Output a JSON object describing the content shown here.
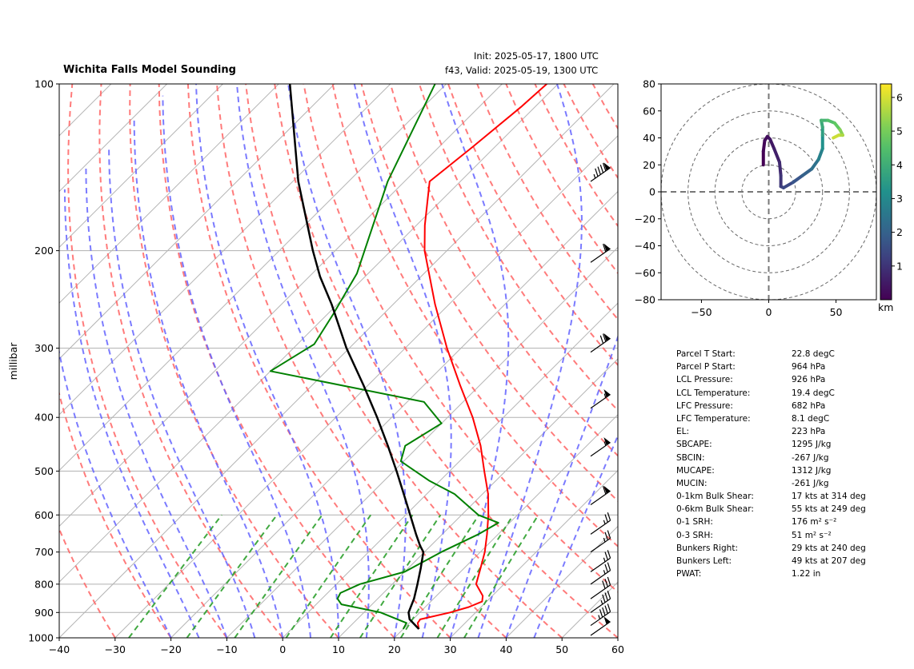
{
  "header": {
    "title": "Wichita Falls Model Sounding",
    "init": "Init: 2025-05-17, 1800 UTC",
    "valid": "f43, Valid: 2025-05-19, 1300 UTC"
  },
  "chart_data": [
    {
      "type": "line",
      "subtype": "skew-t log-p",
      "ylabel": "millibar",
      "xlim": [
        -40,
        60
      ],
      "ylim": [
        1000,
        100
      ],
      "y_scale": "log",
      "x_ticks": [
        -40,
        -30,
        -20,
        -10,
        0,
        10,
        20,
        30,
        40,
        50,
        60
      ],
      "y_ticks": [
        100,
        200,
        300,
        400,
        500,
        600,
        700,
        800,
        900,
        1000
      ],
      "grid": true,
      "colors": {
        "temperature": "#ff0000",
        "dewpoint": "#008000",
        "parcel": "#000000",
        "dry_adiabat": "#ff6464",
        "moist_adiabat": "#6464ff",
        "mixing_ratio": "#2ca02c",
        "isotherm": "#b4b4b4"
      },
      "series": [
        {
          "values": [
            [
              964,
              22.8
            ],
            [
              940,
              21.5
            ],
            [
              926,
              21.3
            ],
            [
              900,
              25.4
            ],
            [
              880,
              27.8
            ],
            [
              860,
              29.2
            ],
            [
              840,
              28.3
            ],
            [
              800,
              25.0
            ],
            [
              750,
              23.0
            ],
            [
              700,
              20.8
            ],
            [
              650,
              18.0
            ],
            [
              600,
              14.8
            ],
            [
              550,
              11.0
            ],
            [
              500,
              6.2
            ],
            [
              450,
              1.0
            ],
            [
              400,
              -5.5
            ],
            [
              350,
              -13.5
            ],
            [
              300,
              -22.5
            ],
            [
              250,
              -32.5
            ],
            [
              200,
              -44.0
            ],
            [
              180,
              -48.5
            ],
            [
              150,
              -55.5
            ],
            [
              130,
              -54.0
            ],
            [
              110,
              -52.5
            ],
            [
              100,
              -52.0
            ]
          ]
        },
        {
          "values": [
            [
              964,
              20.0
            ],
            [
              940,
              19.5
            ],
            [
              900,
              13.0
            ],
            [
              870,
              4.5
            ],
            [
              850,
              2.8
            ],
            [
              830,
              2.3
            ],
            [
              800,
              4.2
            ],
            [
              760,
              10.0
            ],
            [
              700,
              13.0
            ],
            [
              650,
              16.5
            ],
            [
              620,
              18.0
            ],
            [
              600,
              13.0
            ],
            [
              550,
              5.0
            ],
            [
              520,
              -2.0
            ],
            [
              480,
              -10.5
            ],
            [
              450,
              -12.5
            ],
            [
              410,
              -10.0
            ],
            [
              375,
              -17.0
            ],
            [
              330,
              -50.0
            ],
            [
              295,
              -47.0
            ],
            [
              260,
              -49.0
            ],
            [
              220,
              -52.0
            ],
            [
              150,
              -63.0
            ],
            [
              100,
              -72.0
            ]
          ]
        },
        {
          "values": [
            [
              964,
              22.8
            ],
            [
              926,
              19.4
            ],
            [
              900,
              18.0
            ],
            [
              850,
              16.5
            ],
            [
              800,
              14.5
            ],
            [
              750,
              12.3
            ],
            [
              700,
              9.8
            ],
            [
              682,
              8.1
            ],
            [
              650,
              5.3
            ],
            [
              600,
              0.8
            ],
            [
              550,
              -4.1
            ],
            [
              500,
              -9.5
            ],
            [
              450,
              -15.6
            ],
            [
              400,
              -22.6
            ],
            [
              350,
              -30.8
            ],
            [
              300,
              -40.5
            ],
            [
              250,
              -51.0
            ],
            [
              223,
              -58.0
            ],
            [
              200,
              -64.0
            ],
            [
              150,
              -79.0
            ],
            [
              100,
              -98.0
            ]
          ]
        }
      ],
      "wind_barbs": [
        {
          "p": 990,
          "kts": 50
        },
        {
          "p": 950,
          "kts": 45
        },
        {
          "p": 900,
          "kts": 35
        },
        {
          "p": 850,
          "kts": 30
        },
        {
          "p": 800,
          "kts": 25
        },
        {
          "p": 760,
          "kts": 25
        },
        {
          "p": 700,
          "kts": 25
        },
        {
          "p": 650,
          "kts": 25
        },
        {
          "p": 575,
          "kts": 60
        },
        {
          "p": 470,
          "kts": 55
        },
        {
          "p": 385,
          "kts": 55
        },
        {
          "p": 305,
          "kts": 70
        },
        {
          "p": 210,
          "kts": 60
        },
        {
          "p": 150,
          "kts": 95
        }
      ]
    },
    {
      "type": "line",
      "subtype": "hodograph",
      "xlim": [
        -80,
        80
      ],
      "ylim": [
        -80,
        80
      ],
      "x_ticks": [
        -50,
        0,
        50
      ],
      "y_ticks": [
        -80,
        -60,
        -40,
        -20,
        0,
        20,
        40,
        60,
        80
      ],
      "colorbar_label": "km",
      "colorbar_ticks": [
        1,
        2,
        3,
        4,
        5,
        6
      ],
      "colorbar_range": [
        0,
        6.4
      ],
      "values": [
        [
          -4,
          20
        ],
        [
          -4,
          30
        ],
        [
          -3,
          38
        ],
        [
          -1,
          41
        ],
        [
          1,
          39
        ],
        [
          4,
          32
        ],
        [
          8,
          22
        ],
        [
          9,
          12
        ],
        [
          9,
          4
        ],
        [
          11,
          3
        ],
        [
          18,
          7
        ],
        [
          25,
          12
        ],
        [
          32,
          17
        ],
        [
          37,
          24
        ],
        [
          40,
          32
        ],
        [
          40,
          42
        ],
        [
          40,
          48
        ],
        [
          39,
          53
        ],
        [
          44,
          53
        ],
        [
          49,
          51
        ],
        [
          53,
          46
        ],
        [
          55,
          42
        ],
        [
          52,
          42
        ],
        [
          48,
          40
        ]
      ],
      "heights_km": [
        0.0,
        0.1,
        0.2,
        0.3,
        0.45,
        0.6,
        0.8,
        1.0,
        1.2,
        1.4,
        1.7,
        2.0,
        2.4,
        2.8,
        3.2,
        3.6,
        3.9,
        4.2,
        4.5,
        4.8,
        5.2,
        5.6,
        5.9,
        6.2
      ]
    }
  ],
  "stats": [
    {
      "label": "Parcel T Start:",
      "value": "22.8 degC"
    },
    {
      "label": "Parcel P Start:",
      "value": "964 hPa"
    },
    {
      "label": "LCL Pressure:",
      "value": "926 hPa"
    },
    {
      "label": "LCL Temperature:",
      "value": "19.4 degC"
    },
    {
      "label": "LFC Pressure:",
      "value": "682 hPa"
    },
    {
      "label": "LFC Temperature:",
      "value": "8.1 degC"
    },
    {
      "label": "EL:",
      "value": "223 hPa"
    },
    {
      "label": "SBCAPE:",
      "value": "1295 J/kg"
    },
    {
      "label": "SBCIN:",
      "value": "-267 J/kg"
    },
    {
      "label": "MUCAPE:",
      "value": "1312 J/kg"
    },
    {
      "label": "MUCIN:",
      "value": "-261 J/kg"
    },
    {
      "label": "0-1km Bulk Shear:",
      "value": "17 kts at 314 deg"
    },
    {
      "label": "0-6km Bulk Shear:",
      "value": "55 kts at 249 deg"
    },
    {
      "label": "0-1 SRH:",
      "value": "176 m² s⁻²"
    },
    {
      "label": "0-3 SRH:",
      "value": "51 m² s⁻²"
    },
    {
      "label": "Bunkers Right:",
      "value": "29 kts at 240 deg"
    },
    {
      "label": "Bunkers Left:",
      "value": "49 kts at 207 deg"
    },
    {
      "label": "PWAT:",
      "value": "1.22 in"
    }
  ]
}
